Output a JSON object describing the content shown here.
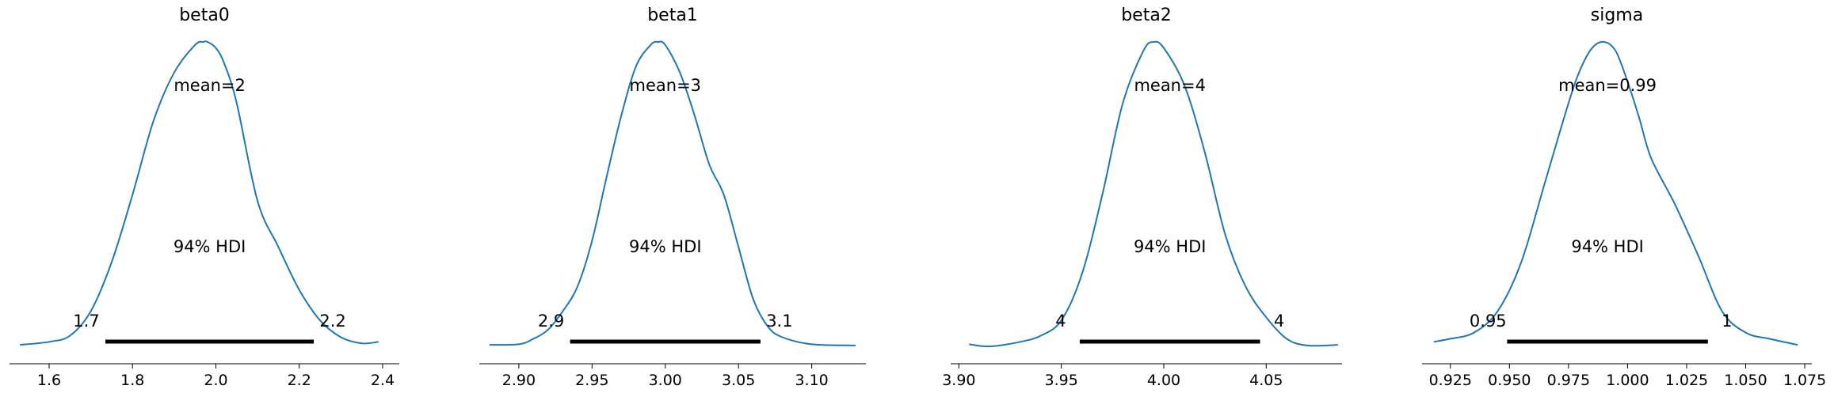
{
  "chart_data": [
    {
      "type": "line",
      "title": "beta0",
      "mean_label": "mean=2",
      "hdi_label": "94% HDI",
      "hdi_low_label": "1.7",
      "hdi_high_label": "2.2",
      "hdi": [
        1.735,
        2.235
      ],
      "xlim": [
        1.505,
        2.44
      ],
      "ticks": [
        1.6,
        1.8,
        2.0,
        2.2,
        2.4
      ],
      "tick_labels": [
        "1.6",
        "1.8",
        "2.0",
        "2.2",
        "2.4"
      ],
      "density": {
        "x": [
          1.53,
          1.6,
          1.65,
          1.7,
          1.75,
          1.8,
          1.85,
          1.9,
          1.95,
          1.97,
          1.98,
          2.0,
          2.02,
          2.05,
          2.1,
          2.15,
          2.2,
          2.25,
          2.3,
          2.35,
          2.39
        ],
        "y": [
          0.01,
          0.02,
          0.04,
          0.12,
          0.28,
          0.5,
          0.74,
          0.9,
          0.99,
          1.0,
          1.0,
          0.98,
          0.93,
          0.8,
          0.48,
          0.33,
          0.19,
          0.09,
          0.035,
          0.015,
          0.02
        ]
      }
    },
    {
      "type": "line",
      "title": "beta1",
      "mean_label": "mean=3",
      "hdi_label": "94% HDI",
      "hdi_low_label": "2.9",
      "hdi_high_label": "3.1",
      "hdi": [
        2.935,
        3.065
      ],
      "xlim": [
        2.873,
        3.137
      ],
      "ticks": [
        2.9,
        2.95,
        3.0,
        3.05,
        3.1
      ],
      "tick_labels": [
        "2.90",
        "2.95",
        "3.00",
        "3.05",
        "3.10"
      ],
      "density": {
        "x": [
          2.88,
          2.9,
          2.91,
          2.92,
          2.93,
          2.94,
          2.95,
          2.96,
          2.97,
          2.98,
          2.99,
          2.995,
          3.0,
          3.01,
          3.02,
          3.03,
          3.04,
          3.05,
          3.06,
          3.07,
          3.08,
          3.1,
          3.13
        ],
        "y": [
          0.01,
          0.012,
          0.03,
          0.06,
          0.12,
          0.2,
          0.35,
          0.56,
          0.76,
          0.92,
          0.99,
          1.0,
          0.99,
          0.9,
          0.76,
          0.6,
          0.5,
          0.33,
          0.16,
          0.07,
          0.035,
          0.012,
          0.008
        ]
      }
    },
    {
      "type": "line",
      "title": "beta2",
      "mean_label": "mean=4",
      "hdi_label": "94% HDI",
      "hdi_low_label": "4",
      "hdi_high_label": "4",
      "hdi": [
        3.959,
        4.047
      ],
      "xlim": [
        3.896,
        4.087
      ],
      "ticks": [
        3.9,
        3.95,
        4.0,
        4.05
      ],
      "tick_labels": [
        "3.90",
        "3.95",
        "4.00",
        "4.05"
      ],
      "density": {
        "x": [
          3.905,
          3.915,
          3.93,
          3.94,
          3.95,
          3.96,
          3.97,
          3.98,
          3.99,
          3.995,
          4.0,
          4.01,
          4.02,
          4.03,
          4.04,
          4.05,
          4.06,
          4.07,
          4.085
        ],
        "y": [
          0.012,
          0.005,
          0.02,
          0.04,
          0.09,
          0.24,
          0.5,
          0.8,
          0.97,
          1.0,
          0.98,
          0.86,
          0.64,
          0.37,
          0.2,
          0.1,
          0.03,
          0.008,
          0.01
        ]
      }
    },
    {
      "type": "line",
      "title": "sigma",
      "mean_label": "mean=0.99",
      "hdi_label": "94% HDI",
      "hdi_low_label": "0.95",
      "hdi_high_label": "1",
      "hdi": [
        0.949,
        1.034
      ],
      "xlim": [
        0.913,
        1.078
      ],
      "ticks": [
        0.925,
        0.95,
        0.975,
        1.0,
        1.025,
        1.05,
        1.075
      ],
      "tick_labels": [
        "0.925",
        "0.950",
        "0.975",
        "1.000",
        "1.025",
        "1.050",
        "1.075"
      ],
      "density": {
        "x": [
          0.918,
          0.925,
          0.935,
          0.945,
          0.955,
          0.965,
          0.975,
          0.98,
          0.985,
          0.99,
          0.995,
          1.0,
          1.005,
          1.01,
          1.02,
          1.03,
          1.04,
          1.05,
          1.06,
          1.072
        ],
        "y": [
          0.02,
          0.03,
          0.05,
          0.12,
          0.28,
          0.54,
          0.8,
          0.91,
          0.98,
          1.0,
          0.97,
          0.87,
          0.75,
          0.62,
          0.47,
          0.3,
          0.12,
          0.05,
          0.03,
          0.01
        ]
      }
    }
  ],
  "colors": {
    "density": "#1f77b4",
    "hdi": "#000000",
    "axis": "#000000"
  }
}
